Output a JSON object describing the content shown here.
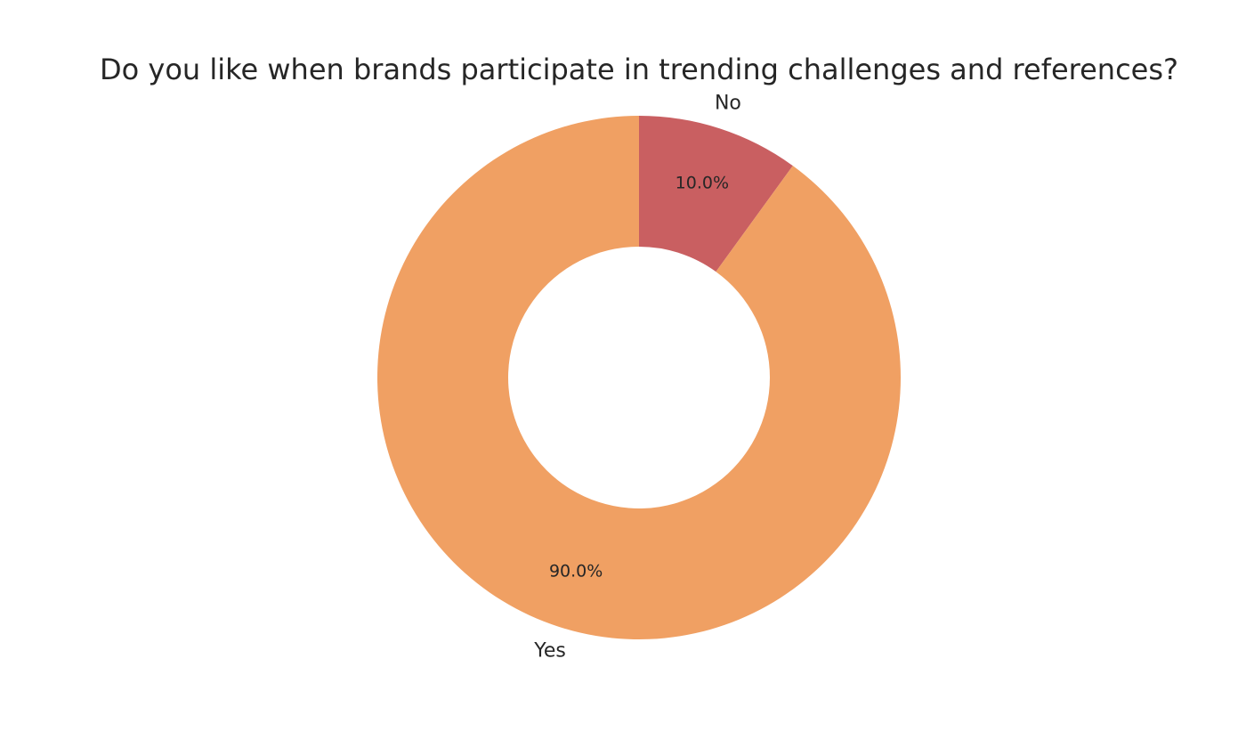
{
  "chart_data": {
    "type": "pie",
    "title": "Do you like when brands participate in trending challenges and references?",
    "donut": true,
    "start_angle_deg": 90,
    "direction": "clockwise",
    "slices": [
      {
        "label": "No",
        "value": 10.0,
        "pct_label": "10.0%",
        "color": "#c95f61"
      },
      {
        "label": "Yes",
        "value": 90.0,
        "pct_label": "90.0%",
        "color": "#f0a063"
      }
    ]
  }
}
